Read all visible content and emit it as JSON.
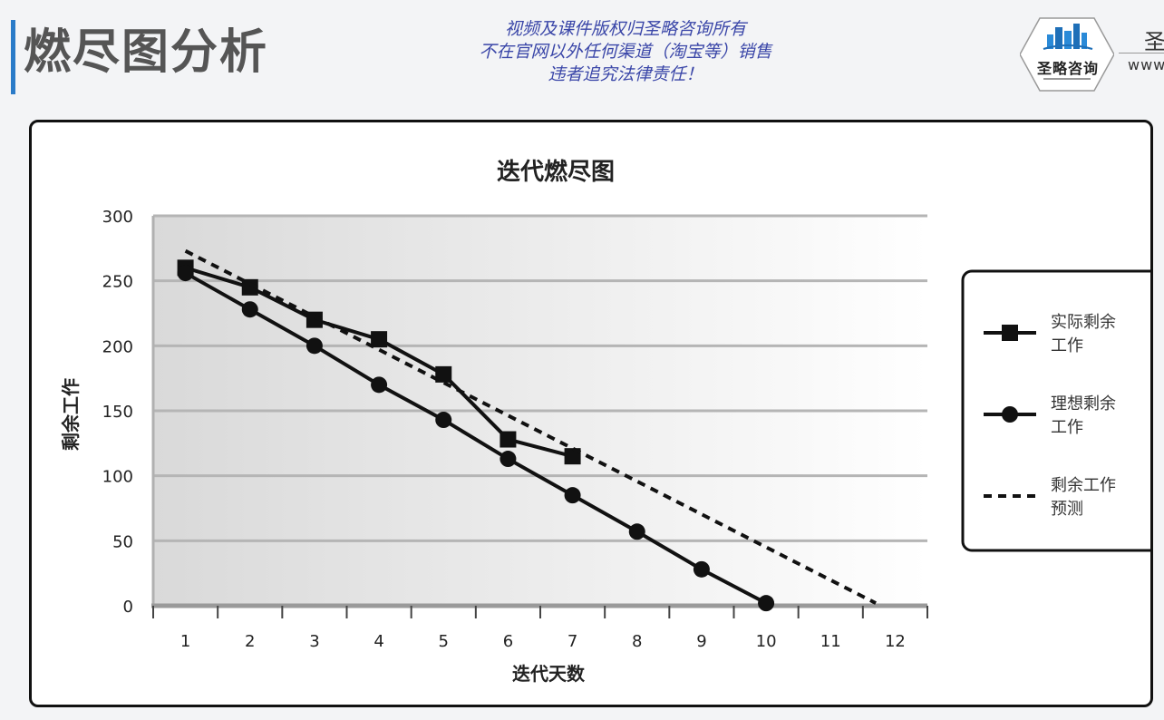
{
  "header": {
    "title": "燃尽图分析",
    "notice_lines": [
      "视频及课件版权归圣略咨询所有",
      "不在官网以外任何渠道（淘宝等）销售",
      "违者追究法律责任！"
    ],
    "logo_text": "圣略咨询",
    "logo_icon": "city-skyline-icon",
    "corner_text": "圣",
    "corner_text2": "www"
  },
  "chart_data": {
    "type": "line",
    "title": "迭代燃尽图",
    "xlabel": "迭代天数",
    "ylabel": "剩余工作",
    "categories": [
      1,
      2,
      3,
      4,
      5,
      6,
      7,
      8,
      9,
      10,
      11,
      12
    ],
    "xlim": [
      0.5,
      12.5
    ],
    "ylim": [
      0,
      300
    ],
    "yticks": [
      0,
      50,
      100,
      150,
      200,
      250,
      300
    ],
    "grid": true,
    "legend_position": "right",
    "series": [
      {
        "name": "实际剩余工作",
        "legend_lines": [
          "实际剩余",
          "工作"
        ],
        "marker": "square",
        "style": "solid",
        "x": [
          1,
          2,
          3,
          4,
          5,
          6,
          7
        ],
        "values": [
          260,
          245,
          220,
          205,
          178,
          128,
          115
        ]
      },
      {
        "name": "理想剩余工作",
        "legend_lines": [
          "理想剩余",
          "工作"
        ],
        "marker": "circle",
        "style": "solid",
        "x": [
          1,
          2,
          3,
          4,
          5,
          6,
          7,
          8,
          9,
          10
        ],
        "values": [
          256,
          228,
          200,
          170,
          143,
          113,
          85,
          57,
          28,
          2
        ]
      },
      {
        "name": "剩余工作预测",
        "legend_lines": [
          "剩余工作",
          "预测"
        ],
        "marker": "none",
        "style": "dashed",
        "x": [
          1,
          11.7
        ],
        "values": [
          273,
          2
        ]
      }
    ]
  },
  "colors": {
    "accent": "#2a7bc8",
    "notice": "#3a46a8",
    "series": "#111111",
    "grid": "#b5b5b5"
  }
}
